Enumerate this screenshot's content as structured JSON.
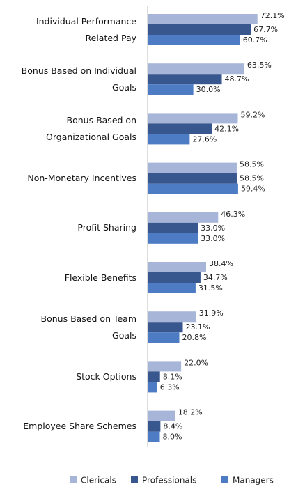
{
  "chart_data": {
    "type": "bar",
    "orientation": "horizontal",
    "categories": [
      "Individual Performance Related Pay",
      "Bonus Based on Individual Goals",
      "Bonus Based on Organizational Goals",
      "Non-Monetary Incentives",
      "Profit Sharing",
      "Flexible Benefits",
      "Bonus Based on Team Goals",
      "Stock Options",
      "Employee Share Schemes"
    ],
    "series": [
      {
        "name": "Clericals",
        "color": "#a7b6d8",
        "values": [
          72.1,
          63.5,
          59.2,
          58.5,
          46.3,
          38.4,
          31.9,
          22.0,
          18.2
        ],
        "value_labels": [
          "72.1%",
          "63.5%",
          "59.2%",
          "58.5%",
          "46.3%",
          "38.4%",
          "31.9%",
          "22.0%",
          "18.2%"
        ]
      },
      {
        "name": "Professionals",
        "color": "#38578f",
        "values": [
          67.7,
          48.7,
          42.1,
          58.5,
          33.0,
          34.7,
          23.1,
          8.1,
          8.4
        ],
        "value_labels": [
          "67.7%",
          "48.7%",
          "42.1%",
          "58.5%",
          "33.0%",
          "34.7%",
          "23.1%",
          "8.1%",
          "8.4%"
        ]
      },
      {
        "name": "Managers",
        "color": "#4d7cc4",
        "values": [
          60.7,
          30.0,
          27.6,
          59.4,
          33.0,
          31.5,
          20.8,
          6.3,
          8.0
        ],
        "value_labels": [
          "60.7%",
          "30.0%",
          "27.6%",
          "59.4%",
          "33.0%",
          "31.5%",
          "20.8%",
          "6.3%",
          "8.0%"
        ]
      }
    ],
    "xlim": [
      0,
      80
    ],
    "legend": "bottom"
  }
}
